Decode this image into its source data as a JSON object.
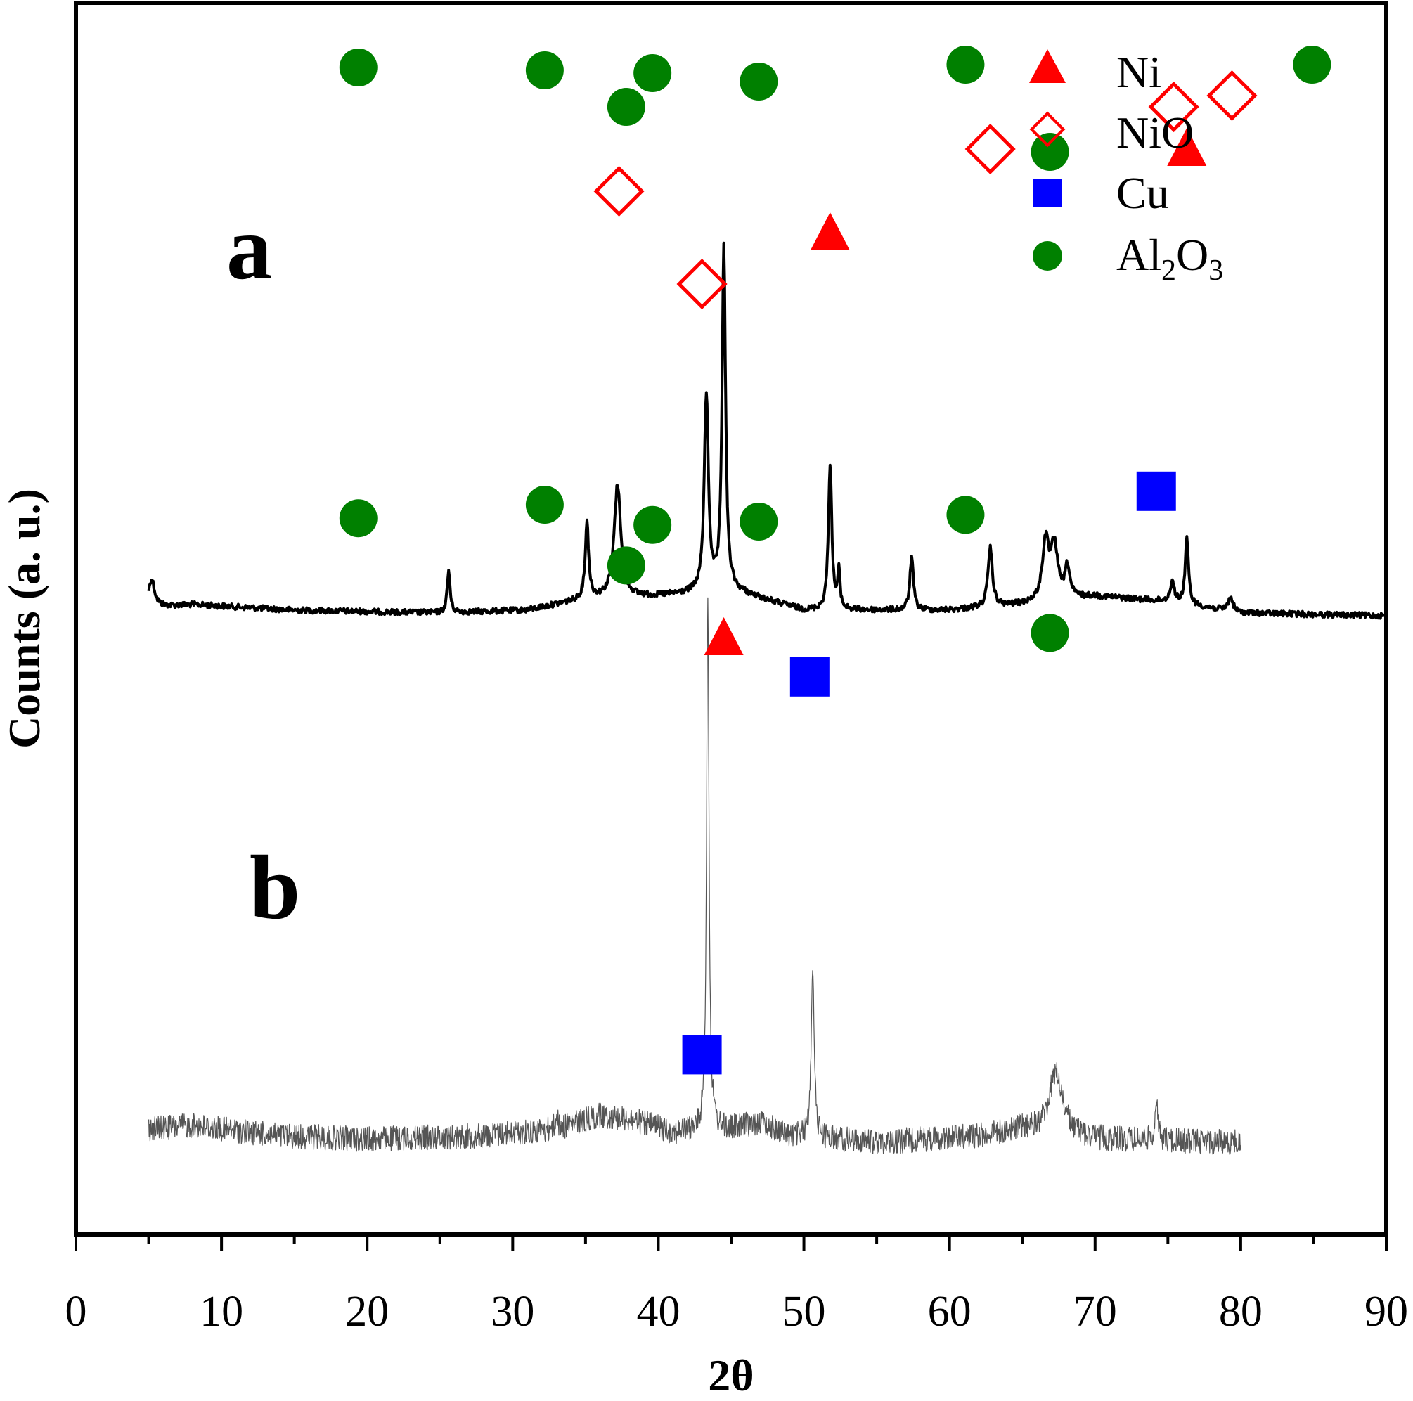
{
  "chart_data": {
    "type": "line",
    "title": "",
    "xlabel": "2θ",
    "ylabel": "Counts (a. u.)",
    "xlim": [
      0,
      90
    ],
    "xticks": [
      0,
      10,
      20,
      30,
      40,
      50,
      60,
      70,
      80,
      90
    ],
    "y_units": "arbitrary",
    "legend": {
      "position": "top-right",
      "entries": [
        {
          "key": "ni",
          "label": "Ni",
          "marker": "triangle",
          "color": "#ff0000"
        },
        {
          "key": "nio",
          "label": "NiO",
          "marker": "diamond-open",
          "color": "#ff0000"
        },
        {
          "key": "cu",
          "label": "Cu",
          "marker": "square",
          "color": "#0000ff"
        },
        {
          "key": "al2o3",
          "label": "Al2O3",
          "label_main": "Al",
          "label_sub1": "2",
          "label_mid": "O",
          "label_sub2": "3",
          "marker": "circle",
          "color": "#008000"
        }
      ]
    },
    "series": [
      {
        "name": "a",
        "label": "a",
        "color": "#000000",
        "line_width": 4,
        "noise": 4,
        "x_range": [
          5,
          90
        ],
        "baseline": [
          [
            5,
            0.98
          ],
          [
            8,
            0.975
          ],
          [
            15,
            0.985
          ],
          [
            25,
            0.99
          ],
          [
            31,
            0.985
          ],
          [
            35,
            0.965
          ],
          [
            40,
            0.96
          ],
          [
            45,
            0.95
          ],
          [
            50,
            0.985
          ],
          [
            60,
            0.985
          ],
          [
            65,
            0.975
          ],
          [
            70,
            0.96
          ],
          [
            75,
            0.97
          ],
          [
            80,
            0.99
          ],
          [
            90,
            0.995
          ]
        ],
        "peaks": [
          {
            "x": 5.2,
            "h": 0.05,
            "w": 0.25
          },
          {
            "x": 25.6,
            "h": 0.075,
            "w": 0.12
          },
          {
            "x": 35.1,
            "h": 0.135,
            "w": 0.14
          },
          {
            "x": 37.2,
            "h": 0.2,
            "w": 0.28
          },
          {
            "x": 43.3,
            "h": 0.35,
            "w": 0.17
          },
          {
            "x": 44.5,
            "h": 0.615,
            "w": 0.14
          },
          {
            "x": 51.8,
            "h": 0.26,
            "w": 0.14
          },
          {
            "x": 52.4,
            "h": 0.065,
            "w": 0.1
          },
          {
            "x": 57.4,
            "h": 0.095,
            "w": 0.14
          },
          {
            "x": 62.8,
            "h": 0.105,
            "w": 0.18
          },
          {
            "x": 66.6,
            "h": 0.105,
            "w": 0.26
          },
          {
            "x": 67.2,
            "h": 0.095,
            "w": 0.28
          },
          {
            "x": 68.1,
            "h": 0.055,
            "w": 0.2
          },
          {
            "x": 75.3,
            "h": 0.035,
            "w": 0.18
          },
          {
            "x": 76.3,
            "h": 0.115,
            "w": 0.14
          },
          {
            "x": 79.3,
            "h": 0.025,
            "w": 0.2
          }
        ]
      },
      {
        "name": "b",
        "label": "b",
        "color": "#555555",
        "line_width": 1.2,
        "noise": 18,
        "x_range": [
          5,
          80
        ],
        "baseline": [
          [
            5,
            0.975
          ],
          [
            8,
            0.97
          ],
          [
            14,
            0.985
          ],
          [
            20,
            0.99
          ],
          [
            28,
            0.985
          ],
          [
            33,
            0.975
          ],
          [
            36,
            0.955
          ],
          [
            38,
            0.96
          ],
          [
            41,
            0.98
          ],
          [
            45,
            0.975
          ],
          [
            47,
            0.965
          ],
          [
            49,
            0.985
          ],
          [
            55,
            0.995
          ],
          [
            62,
            0.985
          ],
          [
            65,
            0.975
          ],
          [
            70,
            0.99
          ],
          [
            80,
            0.995
          ]
        ],
        "peaks": [
          {
            "x": 33.0,
            "h": 0.02,
            "w": 0.1
          },
          {
            "x": 43.4,
            "h": 0.79,
            "w": 0.1
          },
          {
            "x": 50.6,
            "h": 0.26,
            "w": 0.12
          },
          {
            "x": 67.3,
            "h": 0.09,
            "w": 0.55
          },
          {
            "x": 74.2,
            "h": 0.055,
            "w": 0.12
          }
        ]
      }
    ],
    "markers": [
      {
        "series": "a",
        "phase": "ni",
        "x": 44.5,
        "y": 1.035
      },
      {
        "series": "a",
        "phase": "ni",
        "x": 51.8,
        "y": 0.315
      },
      {
        "series": "a",
        "phase": "ni",
        "x": 76.3,
        "y": 0.165
      },
      {
        "series": "a",
        "phase": "nio",
        "x": 37.3,
        "y": 0.24
      },
      {
        "series": "a",
        "phase": "nio",
        "x": 43.0,
        "y": 0.405
      },
      {
        "series": "a",
        "phase": "nio",
        "x": 62.8,
        "y": 0.165
      },
      {
        "series": "a",
        "phase": "nio",
        "x": 75.4,
        "y": 0.09
      },
      {
        "series": "a",
        "phase": "nio",
        "x": 79.4,
        "y": 0.07
      },
      {
        "series": "a",
        "phase": "al2o3",
        "x": 19.4,
        "y": 0.02
      },
      {
        "series": "a",
        "phase": "al2o3",
        "x": 32.2,
        "y": 0.025
      },
      {
        "series": "a",
        "phase": "al2o3",
        "x": 37.8,
        "y": 0.09
      },
      {
        "series": "a",
        "phase": "al2o3",
        "x": 39.6,
        "y": 0.03
      },
      {
        "series": "a",
        "phase": "al2o3",
        "x": 46.9,
        "y": 0.045
      },
      {
        "series": "a",
        "phase": "al2o3",
        "x": 61.1,
        "y": 0.015
      },
      {
        "series": "a",
        "phase": "al2o3",
        "x": 66.9,
        "y": 0.17
      },
      {
        "series": "a",
        "phase": "al2o3",
        "x": 84.9,
        "y": 0.015
      },
      {
        "series": "b",
        "phase": "cu",
        "x": 43.0,
        "y": 0.865
      },
      {
        "series": "b",
        "phase": "cu",
        "x": 50.4,
        "y": 0.305
      },
      {
        "series": "b",
        "phase": "cu",
        "x": 74.2,
        "y": 0.03
      },
      {
        "series": "b",
        "phase": "al2o3",
        "x": 19.4,
        "y": 0.07
      },
      {
        "series": "b",
        "phase": "al2o3",
        "x": 32.2,
        "y": 0.05
      },
      {
        "series": "b",
        "phase": "al2o3",
        "x": 37.8,
        "y": 0.14
      },
      {
        "series": "b",
        "phase": "al2o3",
        "x": 39.6,
        "y": 0.08
      },
      {
        "series": "b",
        "phase": "al2o3",
        "x": 46.9,
        "y": 0.075
      },
      {
        "series": "b",
        "phase": "al2o3",
        "x": 61.1,
        "y": 0.065
      },
      {
        "series": "b",
        "phase": "al2o3",
        "x": 66.9,
        "y": 0.24
      }
    ]
  }
}
